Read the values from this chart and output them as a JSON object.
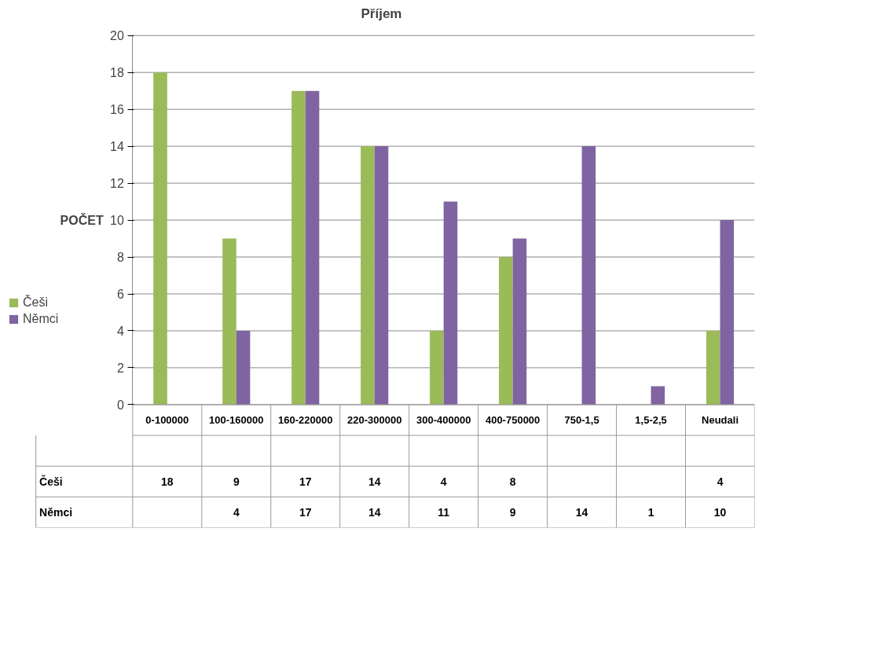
{
  "chart_data": {
    "type": "bar",
    "title": "Příjem",
    "ylabel": "POČET",
    "categories": [
      "0-100000",
      "100-160000",
      "160-220000",
      "220-300000",
      "300-400000",
      "400-750000",
      "750-1,5",
      "1,5-2,5",
      "Neudali"
    ],
    "series": [
      {
        "name": "Češi",
        "color": "#9bbb59",
        "values": [
          18,
          9,
          17,
          14,
          4,
          8,
          null,
          null,
          4
        ]
      },
      {
        "name": "Němci",
        "color": "#8064a2",
        "values": [
          null,
          4,
          17,
          14,
          11,
          9,
          14,
          1,
          10
        ]
      }
    ],
    "ylim": [
      0,
      20
    ],
    "yticks": [
      0,
      2,
      4,
      6,
      8,
      10,
      12,
      14,
      16,
      18,
      20
    ],
    "grid": "y",
    "legend": "left",
    "data_labels": true
  }
}
